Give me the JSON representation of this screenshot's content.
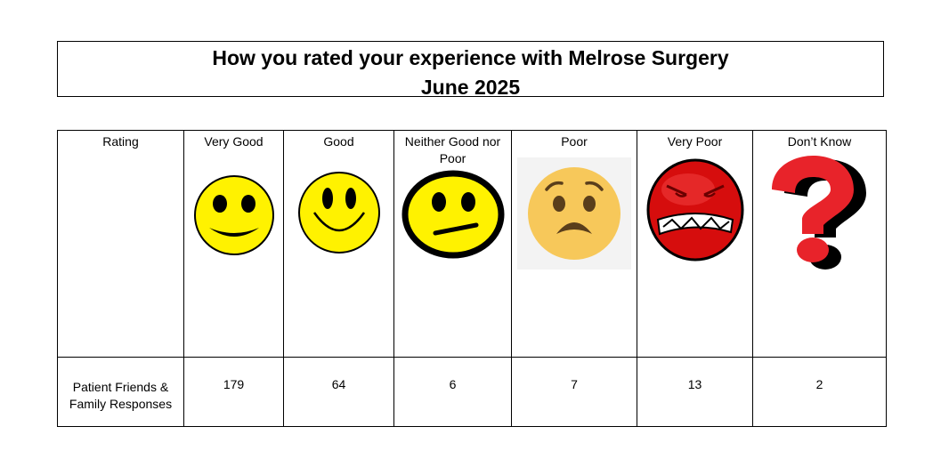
{
  "title": {
    "line1": "How you rated your experience with Melrose Surgery",
    "line2": "June 2025"
  },
  "table": {
    "row_header": "Rating",
    "response_label": "Patient Friends & Family Responses",
    "columns": [
      {
        "label": "Very Good",
        "icon": "big-smile-face-icon",
        "value": "179"
      },
      {
        "label": "Good",
        "icon": "smile-face-icon",
        "value": "64"
      },
      {
        "label": "Neither Good nor Poor",
        "icon": "neutral-face-icon",
        "value": "6"
      },
      {
        "label": "Poor",
        "icon": "worried-face-icon",
        "value": "7"
      },
      {
        "label": "Very Poor",
        "icon": "angry-face-icon",
        "value": "13"
      },
      {
        "label": "Don’t Know",
        "icon": "question-mark-icon",
        "value": "2"
      }
    ]
  },
  "colors": {
    "smiley_yellow": "#fff200",
    "poor_face": "#f7c85a",
    "very_poor_face": "#d60d0d",
    "question_mark": "#e8232a"
  }
}
